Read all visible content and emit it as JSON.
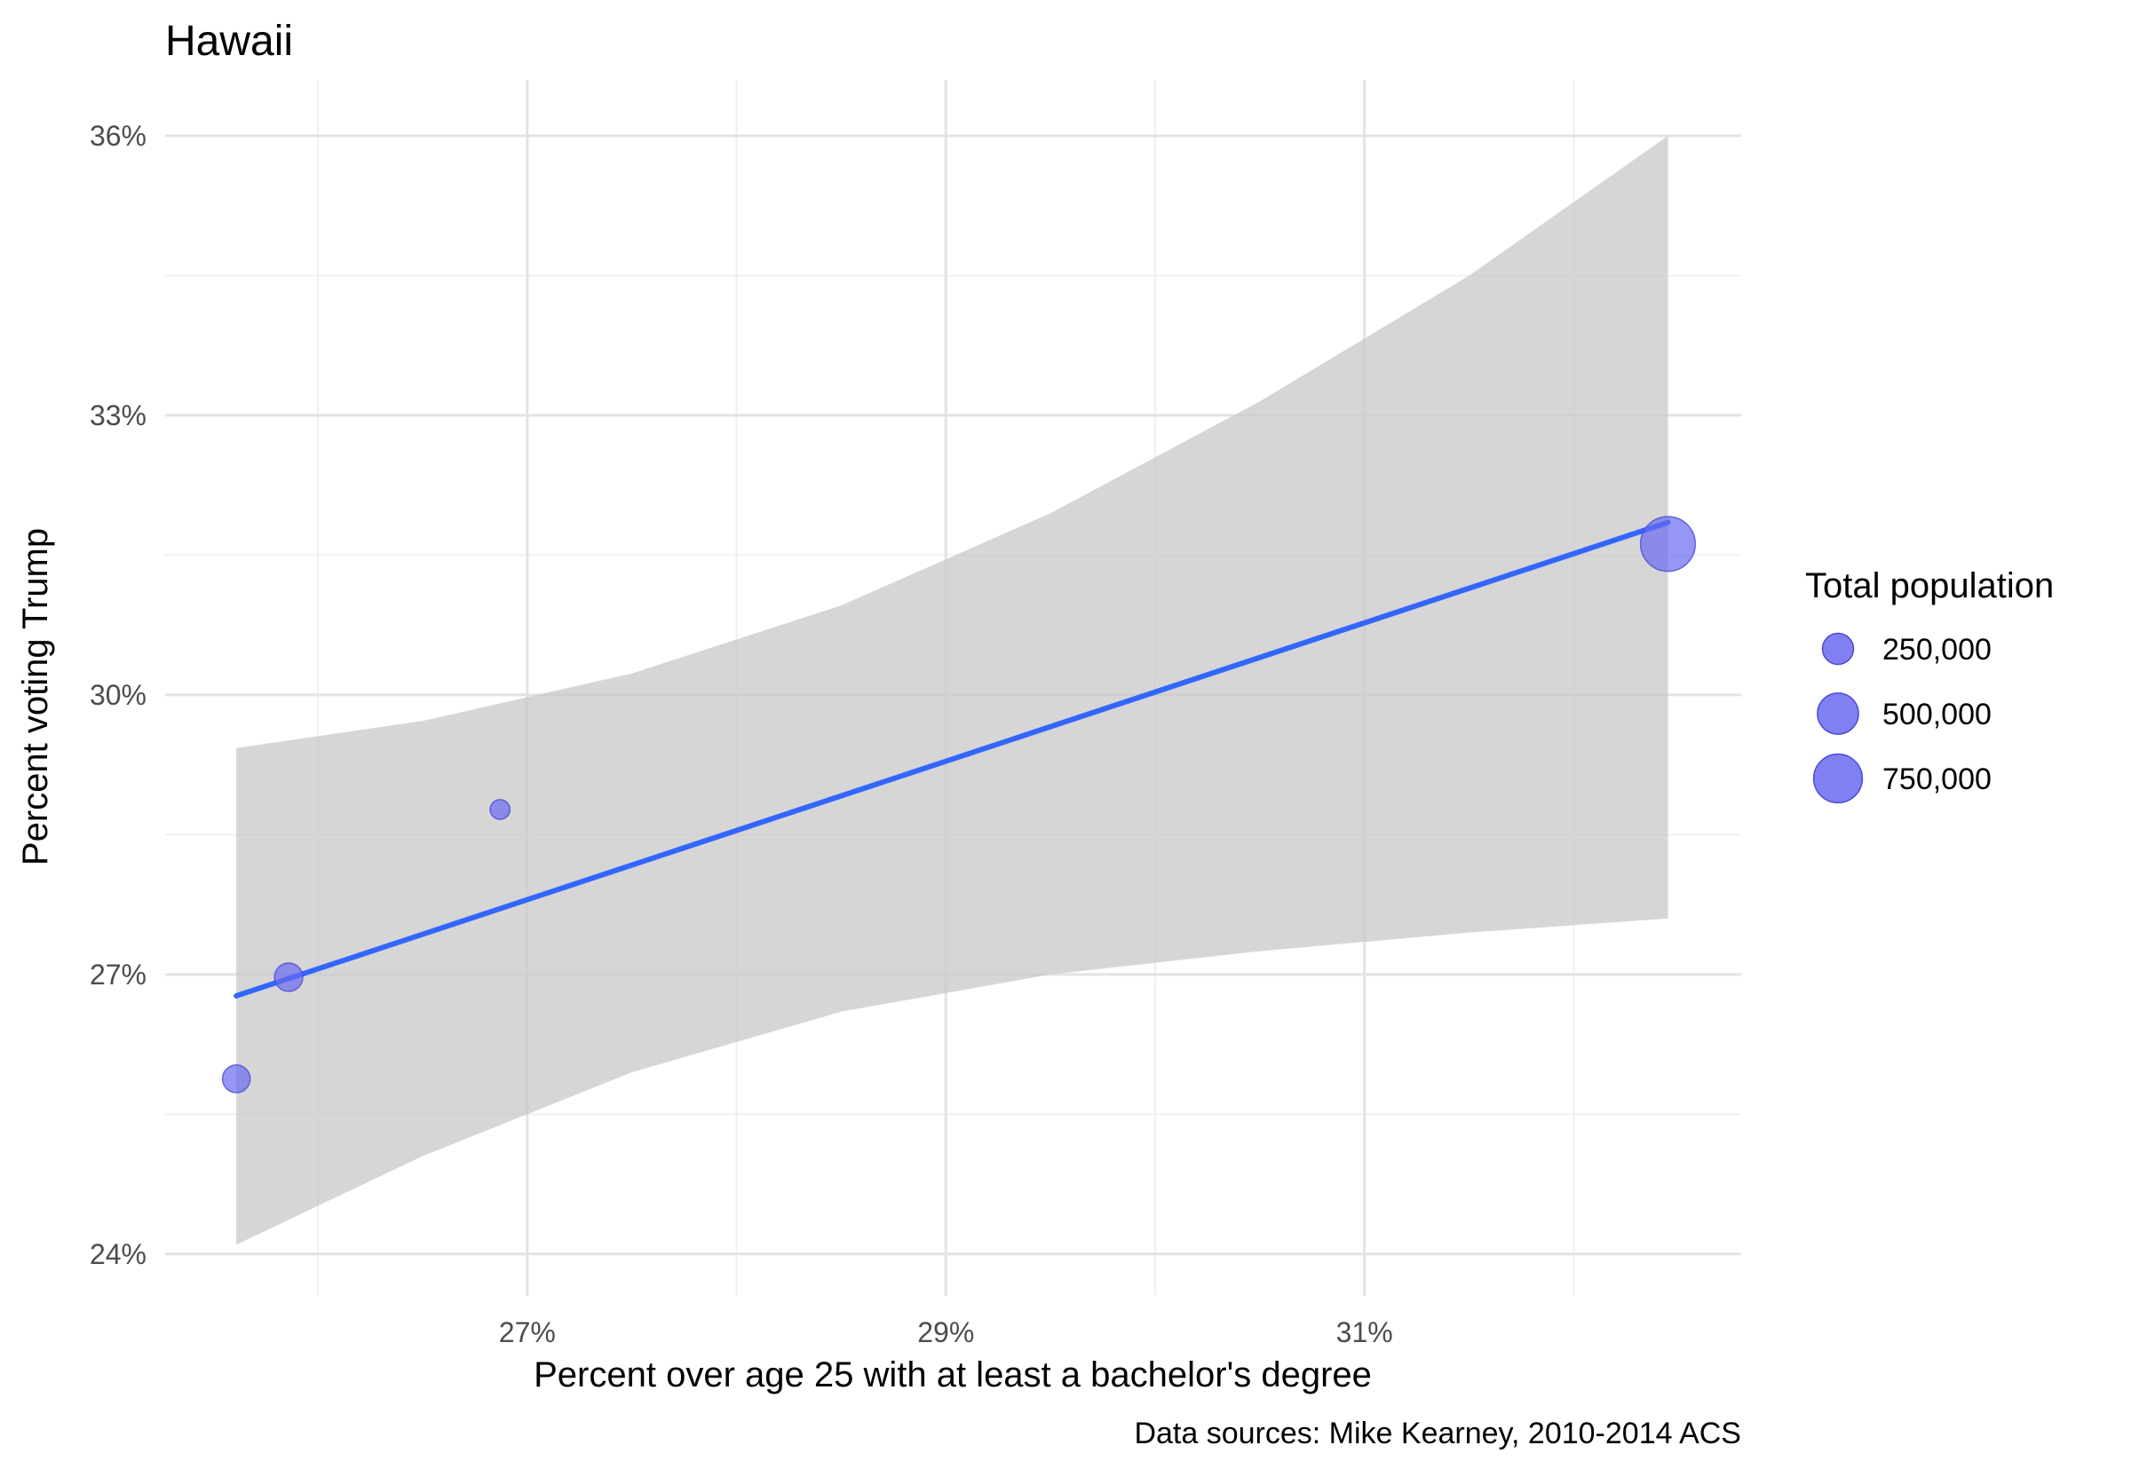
{
  "chart_data": {
    "type": "scatter",
    "title": "Hawaii",
    "xlabel": "Percent over age 25 with at least a bachelor's degree",
    "ylabel": "Percent voting Trump",
    "caption": "Data sources: Mike Kearney, 2010-2014 ACS",
    "xlim": [
      25.27,
      32.8
    ],
    "ylim": [
      23.55,
      36.6
    ],
    "x_ticks": [
      27,
      29,
      31
    ],
    "x_tick_labels": [
      "27%",
      "29%",
      "31%"
    ],
    "y_ticks": [
      24,
      27,
      30,
      33,
      36
    ],
    "y_tick_labels": [
      "24%",
      "27%",
      "30%",
      "33%",
      "36%"
    ],
    "grid": true,
    "points": [
      {
        "x": 25.61,
        "y": 25.88,
        "population": 185000
      },
      {
        "x": 25.86,
        "y": 26.97,
        "population": 195000
      },
      {
        "x": 26.87,
        "y": 28.77,
        "population": 70000
      },
      {
        "x": 32.45,
        "y": 31.62,
        "population": 990000
      }
    ],
    "trend_line": {
      "x": [
        25.61,
        32.45
      ],
      "y": [
        26.77,
        31.85
      ]
    },
    "confidence_band": {
      "x": [
        25.61,
        26.5,
        27.5,
        28.5,
        29.5,
        30.5,
        31.5,
        32.45
      ],
      "upper": [
        29.43,
        29.72,
        30.23,
        30.96,
        31.95,
        33.15,
        34.5,
        36.0
      ],
      "lower": [
        24.1,
        25.05,
        25.95,
        26.6,
        27.0,
        27.25,
        27.45,
        27.6
      ]
    },
    "legend": {
      "title": "Total population",
      "placement": "right",
      "entries": [
        {
          "label": "250,000",
          "value": 250000
        },
        {
          "label": "500,000",
          "value": 500000
        },
        {
          "label": "750,000",
          "value": 750000
        }
      ]
    },
    "colors": {
      "point_fill": "#6a6af0",
      "point_stroke": "#4b4bd6",
      "trend_line": "#3366ff",
      "band": "#c8c8c8",
      "grid_major": "#e3e3e3",
      "grid_minor": "#f0f0f0"
    }
  }
}
